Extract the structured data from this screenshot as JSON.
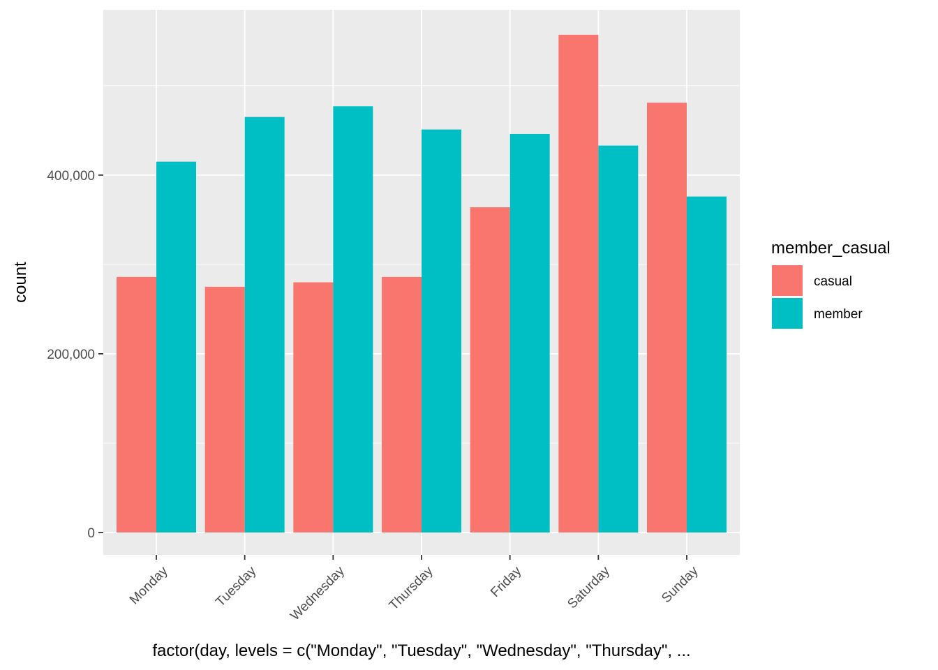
{
  "chart_data": {
    "type": "bar",
    "title": "",
    "xlabel": "factor(day, levels = c(\"Monday\", \"Tuesday\", \"Wednesday\", \"Thursday\", ...",
    "ylabel": "count",
    "categories": [
      "Monday",
      "Tuesday",
      "Wednesday",
      "Thursday",
      "Friday",
      "Saturday",
      "Sunday"
    ],
    "series": [
      {
        "name": "casual",
        "color": "#F8766D",
        "values": [
          286000,
          275000,
          280000,
          286000,
          364000,
          557000,
          481000
        ]
      },
      {
        "name": "member",
        "color": "#00BFC4",
        "values": [
          415000,
          465000,
          477000,
          451000,
          446000,
          433000,
          376000
        ]
      }
    ],
    "ylim": [
      -25000,
      585000
    ],
    "yticks": [
      0,
      200000,
      400000
    ],
    "ytick_labels": [
      "0",
      "200,000",
      "400,000"
    ],
    "grid": true,
    "legend": {
      "title": "member_casual",
      "position": "right",
      "entries": [
        "casual",
        "member"
      ]
    },
    "panel_background": "#EBEBEB",
    "grid_color": "#FFFFFF"
  }
}
